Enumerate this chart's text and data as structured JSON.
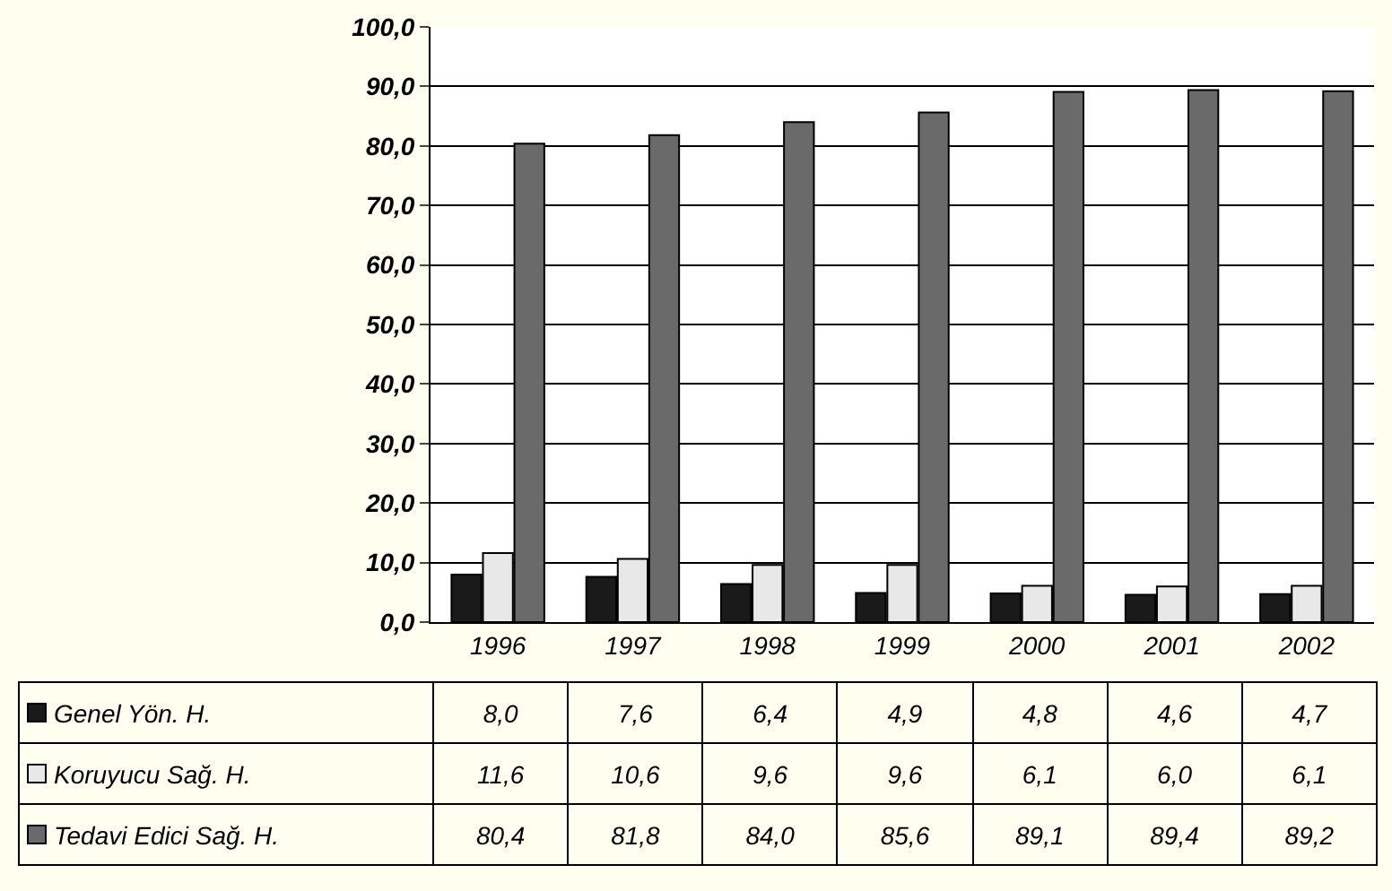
{
  "chart_data": {
    "type": "bar",
    "categories": [
      "1996",
      "1997",
      "1998",
      "1999",
      "2000",
      "2001",
      "2002"
    ],
    "series": [
      {
        "name": "Genel Yön. H.",
        "color": "#1a1a1a",
        "values": [
          8.0,
          7.6,
          6.4,
          4.9,
          4.8,
          4.6,
          4.7
        ],
        "value_labels": [
          "8,0",
          "7,6",
          "6,4",
          "4,9",
          "4,8",
          "4,6",
          "4,7"
        ]
      },
      {
        "name": "Koruyucu Sağ. H.",
        "color": "#e8e8e8",
        "values": [
          11.6,
          10.6,
          9.6,
          9.6,
          6.1,
          6.0,
          6.1
        ],
        "value_labels": [
          "11,6",
          "10,6",
          "9,6",
          "9,6",
          "6,1",
          "6,0",
          "6,1"
        ]
      },
      {
        "name": "Tedavi Edici Sağ. H.",
        "color": "#6a6a6a",
        "values": [
          80.4,
          81.8,
          84.0,
          85.6,
          89.1,
          89.4,
          89.2
        ],
        "value_labels": [
          "80,4",
          "81,8",
          "84,0",
          "85,6",
          "89,1",
          "89,4",
          "89,2"
        ]
      }
    ],
    "ylim": [
      0,
      100
    ],
    "yticks": [
      {
        "value": 0,
        "label": "0,0"
      },
      {
        "value": 10,
        "label": "10,0"
      },
      {
        "value": 20,
        "label": "20,0"
      },
      {
        "value": 30,
        "label": "30,0"
      },
      {
        "value": 40,
        "label": "40,0"
      },
      {
        "value": 50,
        "label": "50,0"
      },
      {
        "value": 60,
        "label": "60,0"
      },
      {
        "value": 70,
        "label": "70,0"
      },
      {
        "value": 80,
        "label": "80,0"
      },
      {
        "value": 90,
        "label": "90,0"
      },
      {
        "value": 100,
        "label": "100,0"
      }
    ],
    "grid": "y",
    "legend": "bottom left"
  }
}
